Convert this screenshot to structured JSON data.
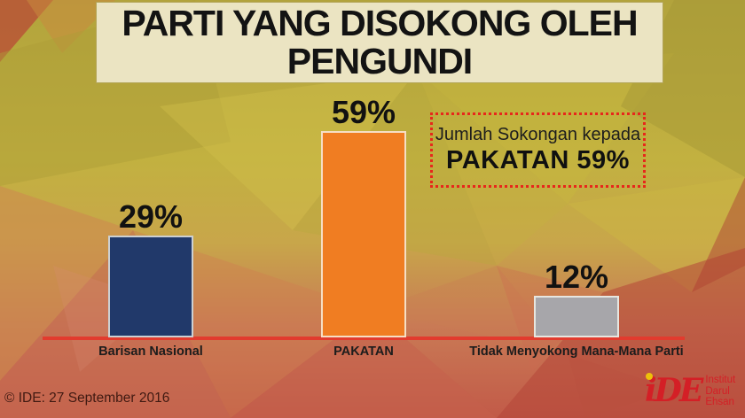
{
  "slide": {
    "title_line1": "PARTI YANG DISOKONG OLEH",
    "title_line2": "PENGUNDI",
    "copyright": "© IDE: 27 September 2016"
  },
  "chart_data": {
    "type": "bar",
    "title": "PARTI YANG DISOKONG OLEH PENGUNDI",
    "categories": [
      "Barisan Nasional",
      "PAKATAN",
      "Tidak Menyokong Mana-Mana Parti"
    ],
    "values": [
      29,
      59,
      12
    ],
    "value_labels": [
      "29%",
      "59%",
      "12%"
    ],
    "unit": "%",
    "ylim": [
      0,
      62
    ],
    "grid": false,
    "legend": false,
    "bar_colors": [
      "#21396a",
      "#f07d22",
      "#a7a6aa"
    ],
    "baseline_color": "#e23b2e"
  },
  "annotation": {
    "line1": "Jumlah Sokongan kepada",
    "line2": "PAKATAN 59%",
    "border_color": "#e7271b"
  },
  "logo": {
    "mark": "iDE",
    "line1": "Institut",
    "line2": "Darul",
    "line3": "Ehsan",
    "color": "#d41f26",
    "dot_color": "#edc10a"
  },
  "colors": {
    "title_box_bg": "#ebe4c2",
    "title_box_border": "#b3a558",
    "text_dark": "#141414",
    "background_palette": [
      "#b2a33c",
      "#c8b244",
      "#cd8a4e",
      "#c76a52",
      "#b44538"
    ]
  }
}
